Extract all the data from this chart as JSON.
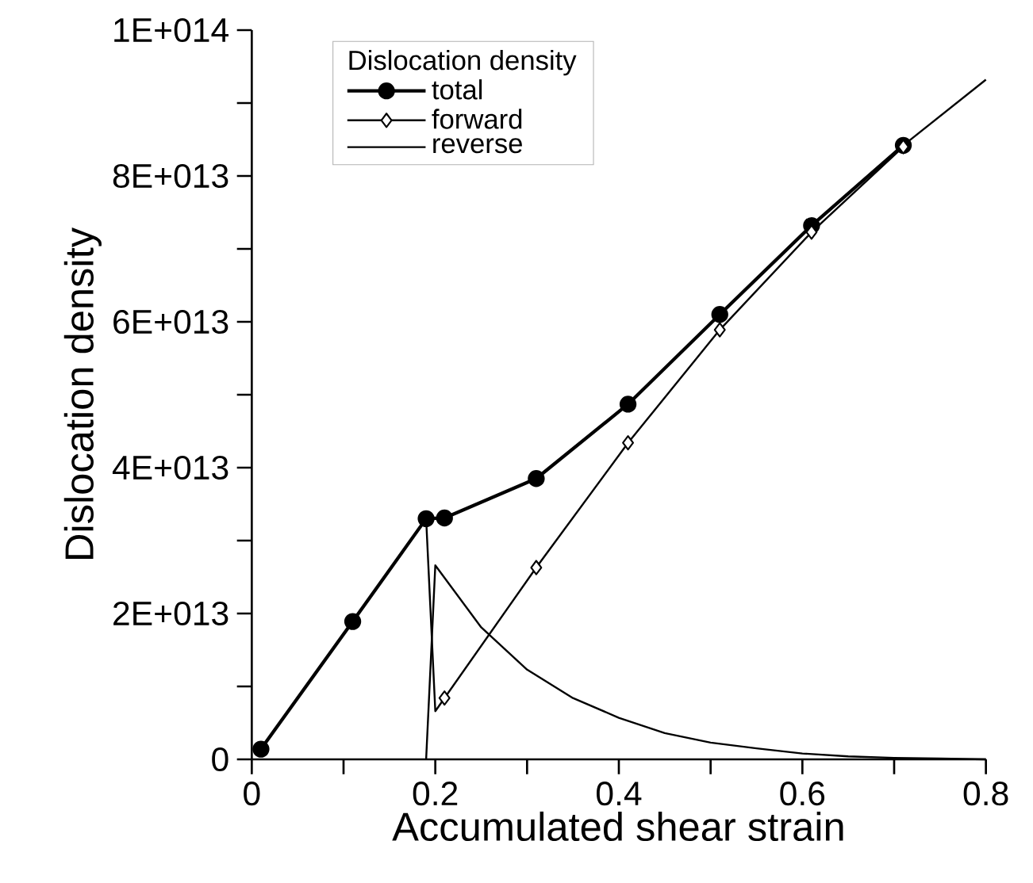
{
  "chart_data": {
    "type": "line",
    "xlabel": "Accumulated shear strain",
    "ylabel": "Dislocation density",
    "legend_title": "Dislocation density",
    "legend": "top left",
    "xlim": [
      0,
      0.8
    ],
    "ylim": [
      0,
      100000000000000.0
    ],
    "xticks": [
      0,
      {
        "value": 0.1,
        "label": null
      },
      0.2,
      {
        "value": 0.3,
        "label": null
      },
      0.4,
      {
        "value": 0.5,
        "label": null
      },
      0.6,
      {
        "value": 0.7,
        "label": null
      },
      0.8
    ],
    "yticks": [
      0,
      {
        "value": 10000000000000.0,
        "label": null
      },
      {
        "value": 20000000000000.0,
        "label": "2E+013"
      },
      {
        "value": 30000000000000.0,
        "label": null
      },
      {
        "value": 40000000000000.0,
        "label": "4E+013"
      },
      {
        "value": 50000000000000.0,
        "label": null
      },
      {
        "value": 60000000000000.0,
        "label": "6E+013"
      },
      {
        "value": 70000000000000.0,
        "label": null
      },
      {
        "value": 80000000000000.0,
        "label": "8E+013"
      },
      {
        "value": 90000000000000.0,
        "label": null
      },
      {
        "value": 100000000000000.0,
        "label": "1E+014"
      }
    ],
    "series": [
      {
        "name": "total",
        "color": "#000000",
        "marker": "circle",
        "x": [
          0.01,
          0.11,
          0.19,
          0.21,
          0.31,
          0.41,
          0.51,
          0.61,
          0.71
        ],
        "values": [
          1400000000000.0,
          18900000000000.0,
          33000000000000.0,
          33100000000000.0,
          38500000000000.0,
          48700000000000.0,
          61000000000000.0,
          73200000000000.0,
          84200000000000.0
        ]
      },
      {
        "color": "#000000",
        "marker": "none",
        "x": [
          0.71,
          0.8
        ],
        "values": [
          84200000000000.0,
          93200000000000.0
        ]
      },
      {
        "color": "#000000",
        "marker": "none",
        "x": [
          0.19,
          0.2,
          0.21
        ],
        "values": [
          33000000000000.0,
          6600000000000.0,
          8400000000000.0
        ]
      },
      {
        "name": "forward",
        "color": "#000000",
        "marker": "diamond",
        "x": [
          0.21,
          0.31,
          0.41,
          0.51,
          0.61,
          0.71
        ],
        "values": [
          8400000000000.0,
          26300000000000.0,
          43400000000000.0,
          58900000000000.0,
          72300000000000.0,
          84000000000000.0
        ]
      },
      {
        "name": "reverse",
        "color": "#000000",
        "marker": "none",
        "x": [
          0.19,
          0.2,
          0.25,
          0.3,
          0.35,
          0.4,
          0.45,
          0.5,
          0.55,
          0.6,
          0.65,
          0.7,
          0.75,
          0.8
        ],
        "values": [
          0,
          26600000000000.0,
          18100000000000.0,
          12300000000000.0,
          8400000000000.0,
          5700000000000.0,
          3600000000000.0,
          2300000000000.0,
          1500000000000.0,
          800000000000.0,
          400000000000.0,
          200000000000.0,
          100000000000.0,
          0
        ]
      }
    ]
  }
}
